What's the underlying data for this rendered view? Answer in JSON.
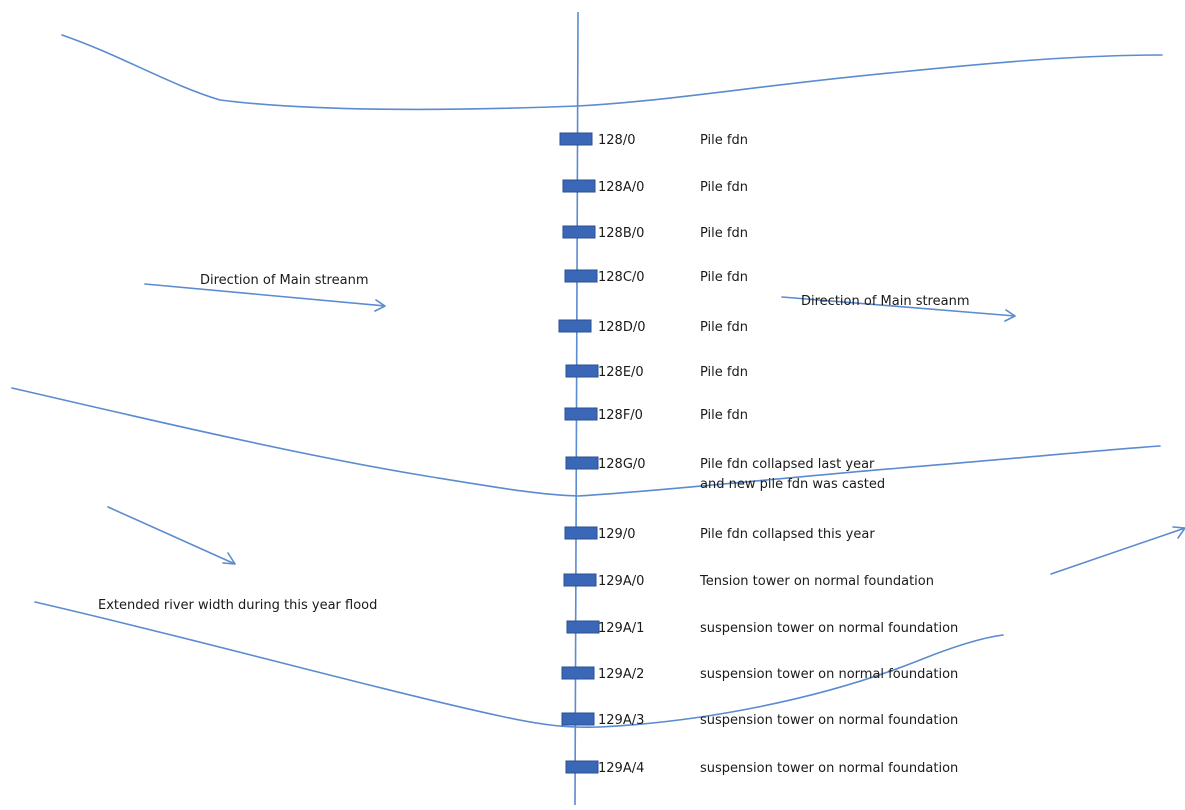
{
  "towers": [
    {
      "id": "128/0",
      "desc": [
        "Pile fdn"
      ]
    },
    {
      "id": "128A/0",
      "desc": [
        "Pile fdn"
      ]
    },
    {
      "id": "128B/0",
      "desc": [
        "Pile fdn"
      ]
    },
    {
      "id": "128C/0",
      "desc": [
        "Pile fdn"
      ]
    },
    {
      "id": "128D/0",
      "desc": [
        "Pile fdn"
      ]
    },
    {
      "id": "128E/0",
      "desc": [
        "Pile fdn"
      ]
    },
    {
      "id": "128F/0",
      "desc": [
        "Pile fdn"
      ]
    },
    {
      "id": "128G/0",
      "desc": [
        "Pile fdn collapsed last year",
        "and new pile fdn was casted"
      ]
    },
    {
      "id": "129/0",
      "desc": [
        "Pile fdn collapsed this year"
      ]
    },
    {
      "id": "129A/0",
      "desc": [
        "Tension tower on normal foundation"
      ]
    },
    {
      "id": "129A/1",
      "desc": [
        "suspension tower on normal foundation"
      ]
    },
    {
      "id": "129A/2",
      "desc": [
        "suspension tower on normal foundation"
      ]
    },
    {
      "id": "129A/3",
      "desc": [
        "suspension tower on normal foundation"
      ]
    },
    {
      "id": "129A/4",
      "desc": [
        "suspension tower on normal foundation"
      ]
    }
  ],
  "annotations": {
    "stream_left": "Direction of Main streanm",
    "stream_right": "Direction of Main streanm",
    "flood_width": "Extended river width during this year flood"
  },
  "colors": {
    "line": "#5b8bd0",
    "tower": "#3b68b6",
    "text": "#1a1a1a"
  }
}
